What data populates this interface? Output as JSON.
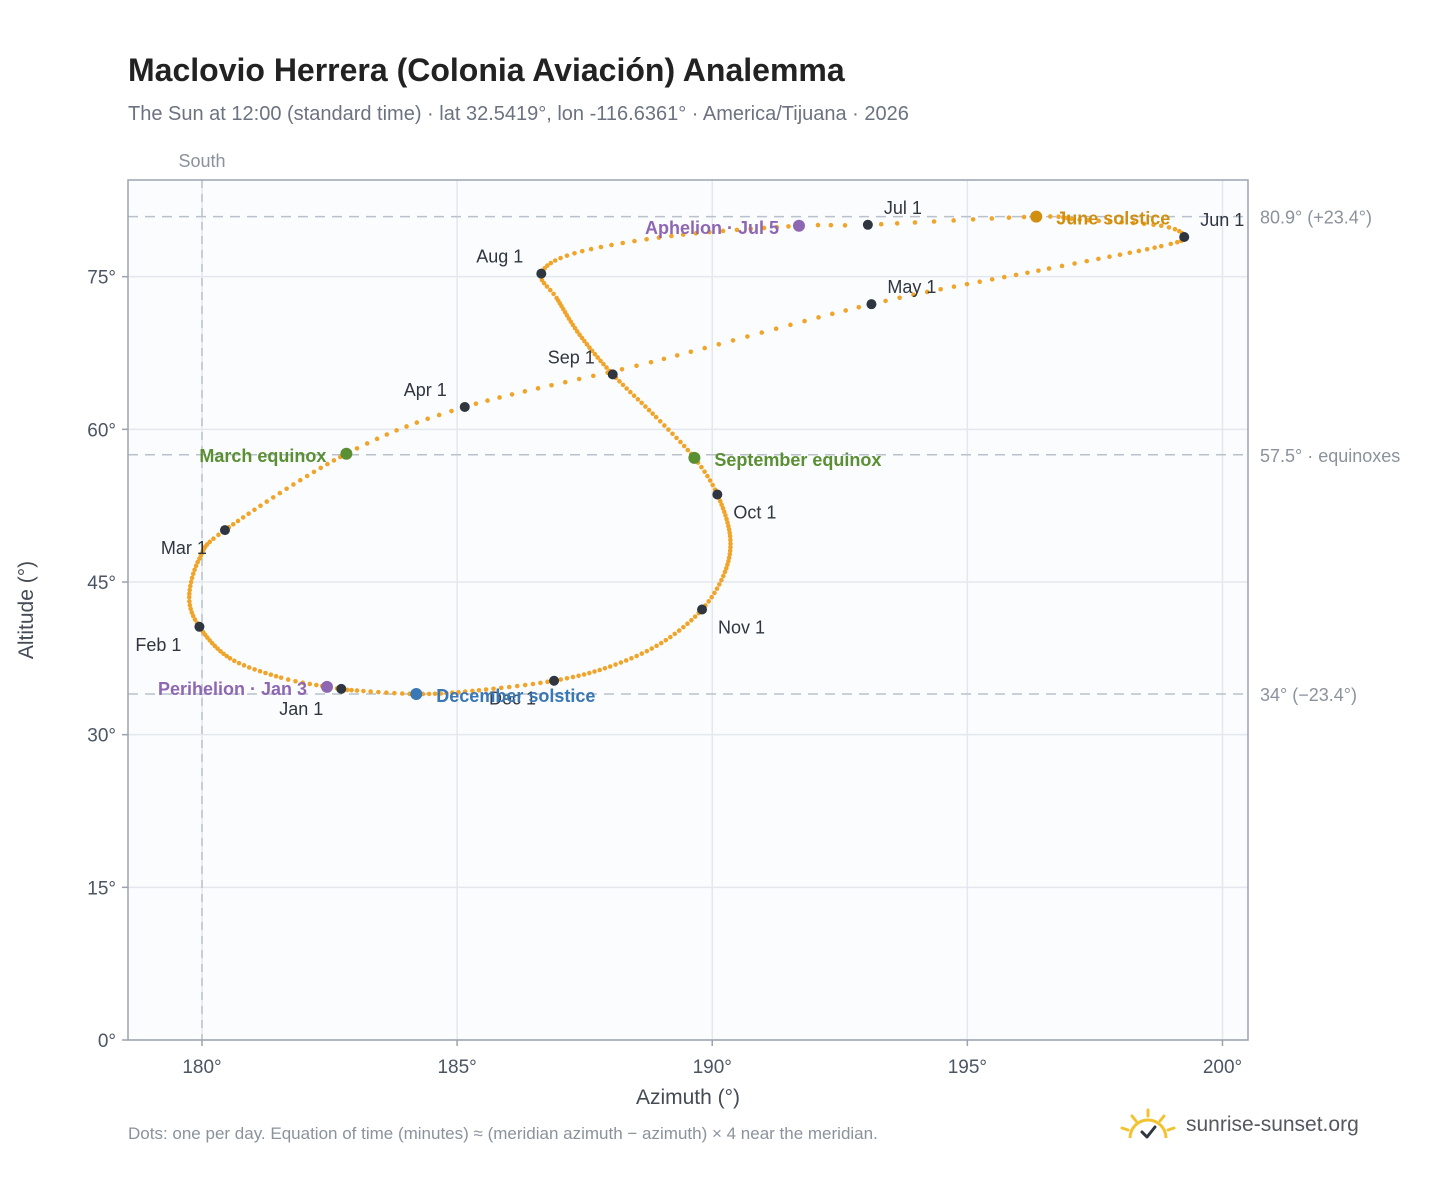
{
  "title": "Maclovio Herrera (Colonia Aviación) Analemma",
  "subtitle": "The Sun at 12:00 (standard time) · lat 32.5419°, lon -116.6361° · America/Tijuana · 2026",
  "footnote": "Dots: one per day. Equation of time (minutes) ≈ (meridian azimuth − azimuth) × 4 near the meridian.",
  "brand": {
    "name": "sunrise-sunset.org",
    "logo_icon": "sun-check-icon"
  },
  "colors": {
    "curve": "#f0a52a",
    "month_marker": "#2f3640",
    "equinox": "#5a8f33",
    "june_solstice": "#d08f10",
    "december_solstice": "#3a77b5",
    "aphelion_perihelion": "#8e67b3",
    "grid": "#e3e8ee",
    "plot_bg": "#fafcfe"
  },
  "chart_data": {
    "type": "scatter",
    "title": "Maclovio Herrera (Colonia Aviación) Analemma",
    "xlabel": "Azimuth (°)",
    "ylabel": "Altitude (°)",
    "xlim": [
      178.55,
      200.5
    ],
    "ylim": [
      0,
      84.5
    ],
    "x_ticks": [
      180,
      185,
      190,
      195,
      200
    ],
    "x_tick_labels": [
      "180°",
      "185°",
      "190°",
      "195°",
      "200°"
    ],
    "y_ticks": [
      0,
      15,
      30,
      45,
      60,
      75
    ],
    "y_tick_labels": [
      "0°",
      "15°",
      "30°",
      "45°",
      "60°",
      "75°"
    ],
    "grid": true,
    "meridian": {
      "azimuth": 180,
      "label": "South"
    },
    "reference_lines": [
      {
        "altitude": 80.9,
        "label": "80.9° (+23.4°)"
      },
      {
        "altitude": 57.5,
        "label": "57.5° · equinoxes"
      },
      {
        "altitude": 34.0,
        "label": "34° (−23.4°)"
      }
    ],
    "month_markers": [
      {
        "label": "Jan 1",
        "az": 182.73,
        "alt": 34.5
      },
      {
        "label": "Feb 1",
        "az": 179.95,
        "alt": 40.6
      },
      {
        "label": "Mar 1",
        "az": 180.45,
        "alt": 50.1
      },
      {
        "label": "Apr 1",
        "az": 185.15,
        "alt": 62.2
      },
      {
        "label": "May 1",
        "az": 193.12,
        "alt": 72.3
      },
      {
        "label": "Jun 1",
        "az": 199.25,
        "alt": 78.9
      },
      {
        "label": "Jul 1",
        "az": 193.05,
        "alt": 80.1
      },
      {
        "label": "Aug 1",
        "az": 186.65,
        "alt": 75.3
      },
      {
        "label": "Sep 1",
        "az": 188.05,
        "alt": 65.4
      },
      {
        "label": "Oct 1",
        "az": 190.1,
        "alt": 53.6
      },
      {
        "label": "Nov 1",
        "az": 189.8,
        "alt": 42.3
      },
      {
        "label": "Dec 1",
        "az": 186.9,
        "alt": 35.3
      }
    ],
    "events": [
      {
        "label": "March equinox",
        "az": 182.83,
        "alt": 57.6,
        "color_key": "equinox"
      },
      {
        "label": "June solstice",
        "az": 196.35,
        "alt": 80.9,
        "color_key": "june_solstice"
      },
      {
        "label": "September equinox",
        "az": 189.65,
        "alt": 57.2,
        "color_key": "equinox"
      },
      {
        "label": "December solstice",
        "az": 184.2,
        "alt": 34.0,
        "color_key": "december_solstice"
      },
      {
        "label": "Perihelion · Jan 3",
        "az": 182.45,
        "alt": 34.7,
        "color_key": "aphelion_perihelion"
      },
      {
        "label": "Aphelion · Jul 5",
        "az": 191.7,
        "alt": 80.0,
        "color_key": "aphelion_perihelion"
      }
    ],
    "daily_path_control": [
      [
        1,
        182.73,
        34.5
      ],
      [
        3,
        182.45,
        34.7
      ],
      [
        10,
        181.55,
        35.6
      ],
      [
        20,
        180.55,
        37.5
      ],
      [
        32,
        179.95,
        40.6
      ],
      [
        40,
        179.75,
        43.5
      ],
      [
        50,
        179.95,
        47.3
      ],
      [
        60,
        180.45,
        50.1
      ],
      [
        80,
        182.83,
        57.6
      ],
      [
        91,
        185.15,
        62.2
      ],
      [
        105,
        188.8,
        66.6
      ],
      [
        121,
        193.12,
        72.3
      ],
      [
        135,
        196.6,
        75.8
      ],
      [
        146,
        198.8,
        78.0
      ],
      [
        152,
        199.25,
        78.9
      ],
      [
        158,
        198.8,
        80.0
      ],
      [
        166,
        197.2,
        80.6
      ],
      [
        172,
        196.35,
        80.9
      ],
      [
        182,
        193.05,
        80.1
      ],
      [
        186,
        191.7,
        80.0
      ],
      [
        196,
        189.2,
        79.0
      ],
      [
        205,
        187.3,
        77.3
      ],
      [
        213,
        186.65,
        75.3
      ],
      [
        220,
        186.95,
        72.9
      ],
      [
        232,
        187.4,
        69.3
      ],
      [
        244,
        188.05,
        65.4
      ],
      [
        256,
        188.9,
        61.2
      ],
      [
        266,
        189.65,
        57.2
      ],
      [
        274,
        190.1,
        53.6
      ],
      [
        286,
        190.35,
        49.5
      ],
      [
        296,
        190.25,
        46.0
      ],
      [
        305,
        189.8,
        42.3
      ],
      [
        315,
        189.0,
        39.0
      ],
      [
        325,
        188.0,
        36.7
      ],
      [
        335,
        186.9,
        35.3
      ],
      [
        346,
        185.3,
        34.3
      ],
      [
        355,
        184.2,
        34.0
      ],
      [
        365,
        182.85,
        34.4
      ]
    ]
  }
}
